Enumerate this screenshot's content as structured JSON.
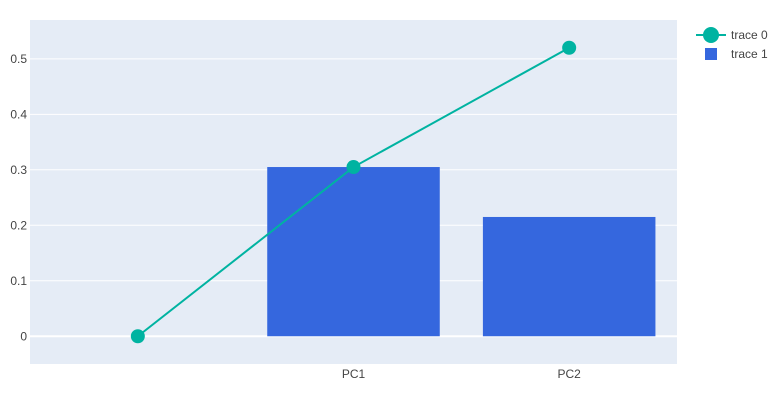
{
  "chart_data": {
    "type": "bar",
    "categories": [
      "",
      "PC1",
      "PC2"
    ],
    "series": [
      {
        "name": "trace 0",
        "type": "line",
        "values": [
          0,
          0.305,
          0.52
        ],
        "color": "#00b3a1"
      },
      {
        "name": "trace 1",
        "type": "bar",
        "values": [
          null,
          0.305,
          0.215
        ],
        "color": "#3567de"
      }
    ],
    "yticks": [
      "0",
      "0.1",
      "0.2",
      "0.3",
      "0.4",
      "0.5"
    ],
    "ylim": [
      -0.05,
      0.57
    ],
    "grid": true,
    "legend_position": "top-right",
    "plot_background": "#e5ecf6"
  }
}
